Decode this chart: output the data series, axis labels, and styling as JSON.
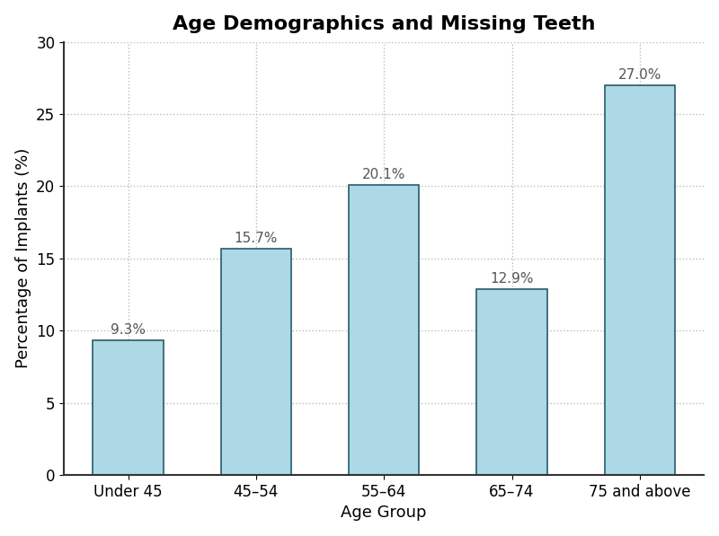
{
  "title": "Age Demographics and Missing Teeth",
  "xlabel": "Age Group",
  "ylabel": "Percentage of Implants (%)",
  "categories": [
    "Under 45",
    "45–54",
    "55–64",
    "65–74",
    "75 and above"
  ],
  "values": [
    9.3,
    15.7,
    20.1,
    12.9,
    27.0
  ],
  "bar_color": "#add8e6",
  "bar_edgecolor": "#2a5a6a",
  "bar_linewidth": 1.2,
  "bar_width": 0.55,
  "ylim": [
    0,
    30
  ],
  "yticks": [
    0,
    5,
    10,
    15,
    20,
    25,
    30
  ],
  "title_fontsize": 16,
  "label_fontsize": 13,
  "tick_fontsize": 12,
  "annotation_fontsize": 11,
  "annotation_color": "#555555",
  "grid_color": "#bbbbbb",
  "grid_linestyle": ":",
  "grid_linewidth": 1.0,
  "spine_color": "#333333",
  "spine_linewidth": 1.5,
  "background_color": "#ffffff",
  "figsize": [
    8.0,
    5.97
  ],
  "dpi": 100
}
